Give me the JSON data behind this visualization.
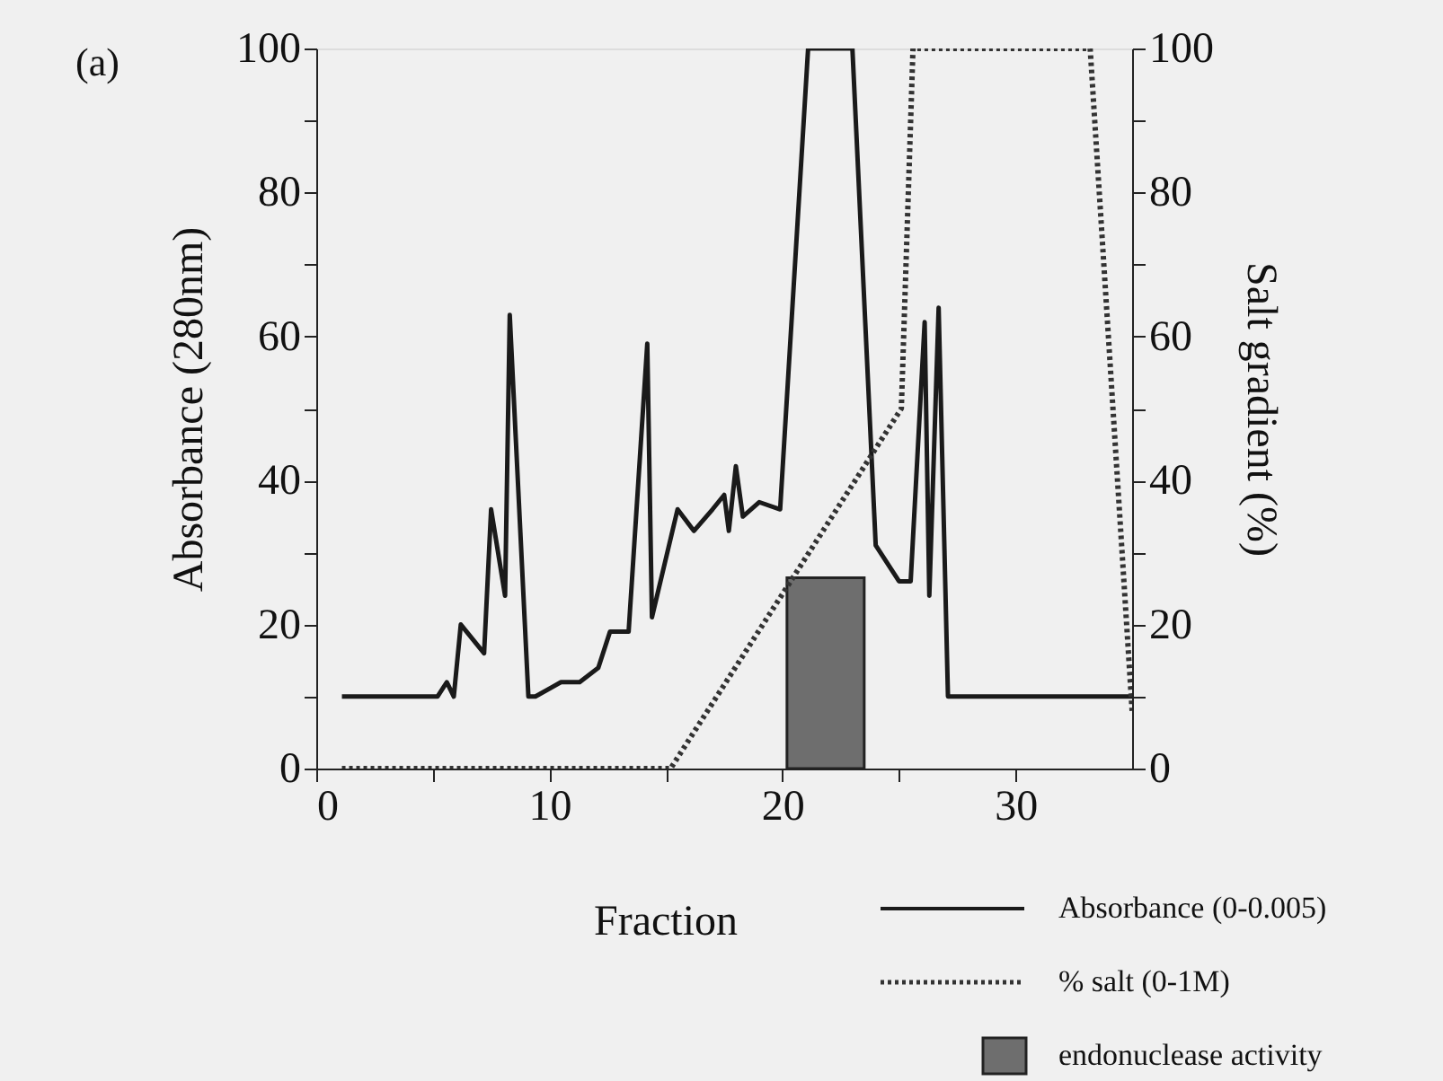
{
  "chart_data": {
    "type": "line",
    "title": "(a)",
    "xlabel": "Fraction",
    "ylabel": "Absorbance (280nm)",
    "y2label": "Salt gradient (%)",
    "xlim": [
      0,
      35
    ],
    "xticks": [
      0,
      {
        "value": 5,
        "label": null
      },
      10,
      {
        "value": 15,
        "label": null
      },
      20,
      {
        "value": 25,
        "label": null
      },
      30
    ],
    "ylim": [
      0,
      100
    ],
    "yticks": [
      0,
      {
        "value": 10,
        "label": null
      },
      20,
      {
        "value": 30,
        "label": null
      },
      40,
      {
        "value": 50,
        "label": null
      },
      60,
      {
        "value": 70,
        "label": null
      },
      80,
      {
        "value": 90,
        "label": null
      },
      100
    ],
    "y2lim": [
      0,
      100
    ],
    "y2ticks": [
      0,
      {
        "value": 10,
        "label": null
      },
      20,
      {
        "value": 30,
        "label": null
      },
      40,
      {
        "value": 50,
        "label": null
      },
      60,
      {
        "value": 70,
        "label": null
      },
      80,
      {
        "value": 90,
        "label": null
      },
      100
    ],
    "grid": false,
    "legend": "bottom right",
    "series": [
      {
        "name": "Absorbance (0-0.005)",
        "color": "#1a1a1a",
        "line_style": "solid",
        "x": [
          1.1,
          5.2,
          5.6,
          5.9,
          6.2,
          7.2,
          7.5,
          8.1,
          8.3,
          9.1,
          9.4,
          10.5,
          11.3,
          12.1,
          12.6,
          13.4,
          14.2,
          14.4,
          15.5,
          16.2,
          17.0,
          17.5,
          17.7,
          18.0,
          18.3,
          19.0,
          19.9,
          21.1,
          23.0,
          24.0,
          25.0,
          25.5,
          26.1,
          26.3,
          26.7,
          27.1,
          35
        ],
        "values": [
          10,
          10,
          12,
          10,
          20,
          16,
          36,
          24,
          63,
          10,
          10,
          12,
          12,
          14,
          19,
          19,
          59,
          21,
          36,
          33,
          36,
          38,
          33,
          42,
          35,
          37,
          36,
          100,
          100,
          31,
          26,
          26,
          62,
          24,
          64,
          10,
          10
        ]
      },
      {
        "name": "% salt (0-1M)",
        "axis": "y2",
        "color": "#333333",
        "line_style": "dotted",
        "x": [
          1.1,
          15.2,
          25.1,
          25.6,
          33.2,
          35
        ],
        "values": [
          0,
          0,
          50,
          100,
          100,
          8
        ]
      },
      {
        "name": "endonuclease activity",
        "type": "bar",
        "color": "#6e6e6e",
        "x": [
          21.85
        ],
        "values": [
          26.5
        ]
      }
    ]
  }
}
